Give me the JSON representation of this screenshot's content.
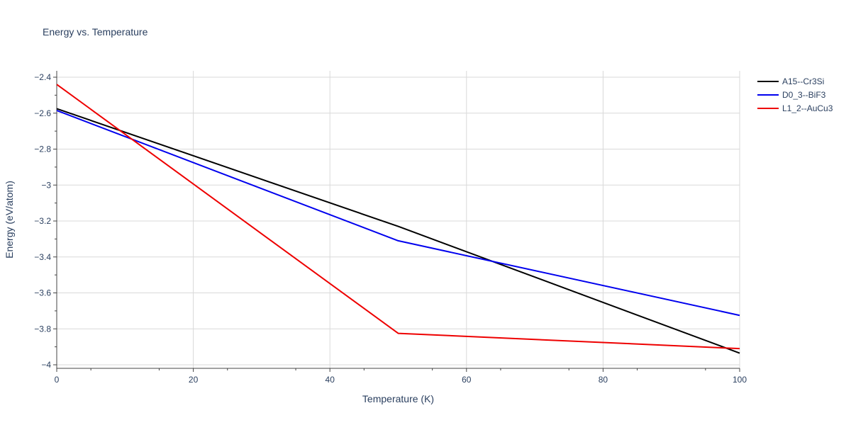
{
  "chart_data": {
    "type": "line",
    "title": "Energy vs. Temperature",
    "xlabel": "Temperature (K)",
    "ylabel": "Energy (eV/atom)",
    "xlim": [
      0,
      100
    ],
    "ylim": [
      -4.0,
      -2.4
    ],
    "x_ticks": [
      0,
      20,
      40,
      60,
      80,
      100
    ],
    "x_tick_labels": [
      "0",
      "20",
      "40",
      "60",
      "80",
      "100"
    ],
    "y_ticks": [
      -4.0,
      -3.8,
      -3.6,
      -3.4,
      -3.2,
      -3.0,
      -2.8,
      -2.6,
      -2.4
    ],
    "y_tick_labels": [
      "−4",
      "−3.8",
      "−3.6",
      "−3.4",
      "−3.2",
      "−3",
      "−2.8",
      "−2.6",
      "−2.4"
    ],
    "grid": true,
    "legend_position": "top-right",
    "series": [
      {
        "name": "A15--Cr3Si",
        "color": "#000000",
        "x": [
          0,
          50,
          100
        ],
        "y": [
          -2.575,
          -3.23,
          -3.935
        ]
      },
      {
        "name": "D0_3--BiF3",
        "color": "#0000ee",
        "x": [
          0,
          50,
          100
        ],
        "y": [
          -2.585,
          -3.31,
          -3.725
        ]
      },
      {
        "name": "L1_2--AuCu3",
        "color": "#ee0000",
        "x": [
          0,
          50,
          100
        ],
        "y": [
          -2.44,
          -3.825,
          -3.91
        ]
      }
    ]
  }
}
